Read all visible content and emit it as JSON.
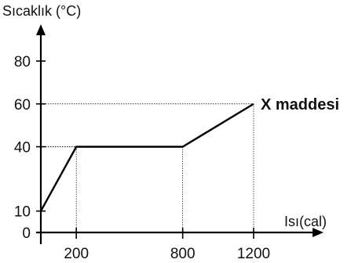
{
  "chart_data": {
    "type": "line",
    "ylabel": "Sıcaklık (°C)",
    "xlabel": "Isı(cal)",
    "x_ticks": [
      200,
      800,
      1200
    ],
    "y_ticks": [
      0,
      10,
      40,
      60,
      80
    ],
    "xlim": [
      0,
      1200
    ],
    "ylim": [
      0,
      80
    ],
    "grid": false,
    "series": [
      {
        "name": "X maddesi",
        "x": [
          0,
          200,
          800,
          1200
        ],
        "y": [
          10,
          40,
          40,
          60
        ]
      }
    ]
  }
}
